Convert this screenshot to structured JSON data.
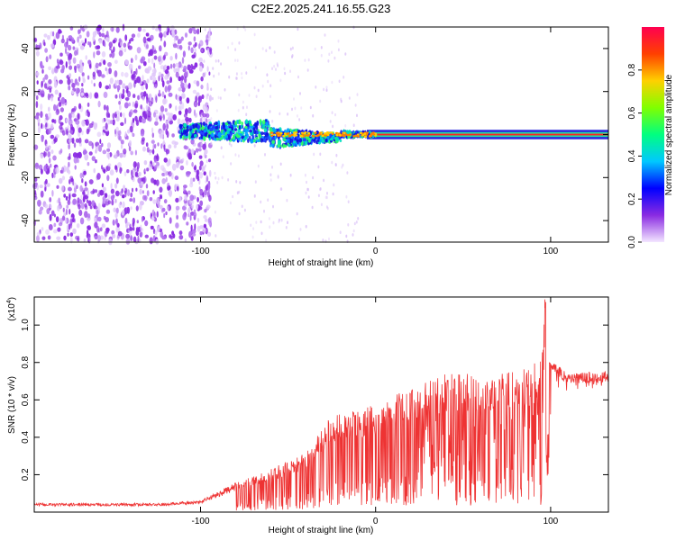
{
  "title": "C2E2.2025.241.16.55.G23",
  "chart_data": [
    {
      "type": "heatmap",
      "name": "spectrogram",
      "xlabel": "Height of straight line (km)",
      "ylabel": "Frequency (Hz)",
      "xlim": [
        -195,
        133
      ],
      "ylim": [
        -50,
        50
      ],
      "xticks": [
        -100,
        0,
        100
      ],
      "yticks": [
        -40,
        -20,
        0,
        20,
        40
      ],
      "colorbar": {
        "label": "Normalized spectral amplitude",
        "range": [
          0,
          1
        ],
        "ticks": [
          "0.0",
          "0.2",
          "0.4",
          "0.6",
          "0.8"
        ],
        "colormap": [
          "#f3e6ff",
          "#8a2be2",
          "#0000ff",
          "#00c8ff",
          "#00ff80",
          "#80ff00",
          "#ffd000",
          "#ff4000",
          "#ff0050"
        ]
      },
      "features": {
        "noise_region_x": [
          -195,
          -100
        ],
        "track_x": [
          -112,
          133
        ],
        "track_freq_hz": 0,
        "track_spread_hz": [
          {
            "x": -110,
            "spread": 3
          },
          {
            "x": -65,
            "spread": 5
          },
          {
            "x": -40,
            "spread": 3
          },
          {
            "x": -20,
            "spread": 1.5
          },
          {
            "x": 0,
            "spread": 0.8
          },
          {
            "x": 133,
            "spread": 0.8
          }
        ]
      }
    },
    {
      "type": "line",
      "name": "snr",
      "xlabel": "Height of straight line (km)",
      "ylabel": "SNR (10 * v/v)",
      "yscale_label": "(x10",
      "yscale_exp": "4",
      "xlim": [
        -195,
        133
      ],
      "ylim": [
        0,
        1.15
      ],
      "xticks": [
        -100,
        0,
        100
      ],
      "yticks": [
        "0.2",
        "0.4",
        "0.6",
        "0.8",
        "1.0"
      ],
      "series_color": "#ee3333",
      "envelope": [
        {
          "x": -195,
          "y": 0.04
        },
        {
          "x": -120,
          "y": 0.04
        },
        {
          "x": -100,
          "y": 0.06
        },
        {
          "x": -80,
          "y": 0.15
        },
        {
          "x": -60,
          "y": 0.22
        },
        {
          "x": -40,
          "y": 0.3
        },
        {
          "x": -25,
          "y": 0.5
        },
        {
          "x": -10,
          "y": 0.52
        },
        {
          "x": 0,
          "y": 0.55
        },
        {
          "x": 20,
          "y": 0.63
        },
        {
          "x": 40,
          "y": 0.72
        },
        {
          "x": 60,
          "y": 0.7
        },
        {
          "x": 80,
          "y": 0.72
        },
        {
          "x": 95,
          "y": 0.78
        },
        {
          "x": 97,
          "y": 1.15
        },
        {
          "x": 99,
          "y": 0.8
        },
        {
          "x": 110,
          "y": 0.73
        },
        {
          "x": 133,
          "y": 0.74
        }
      ]
    }
  ]
}
